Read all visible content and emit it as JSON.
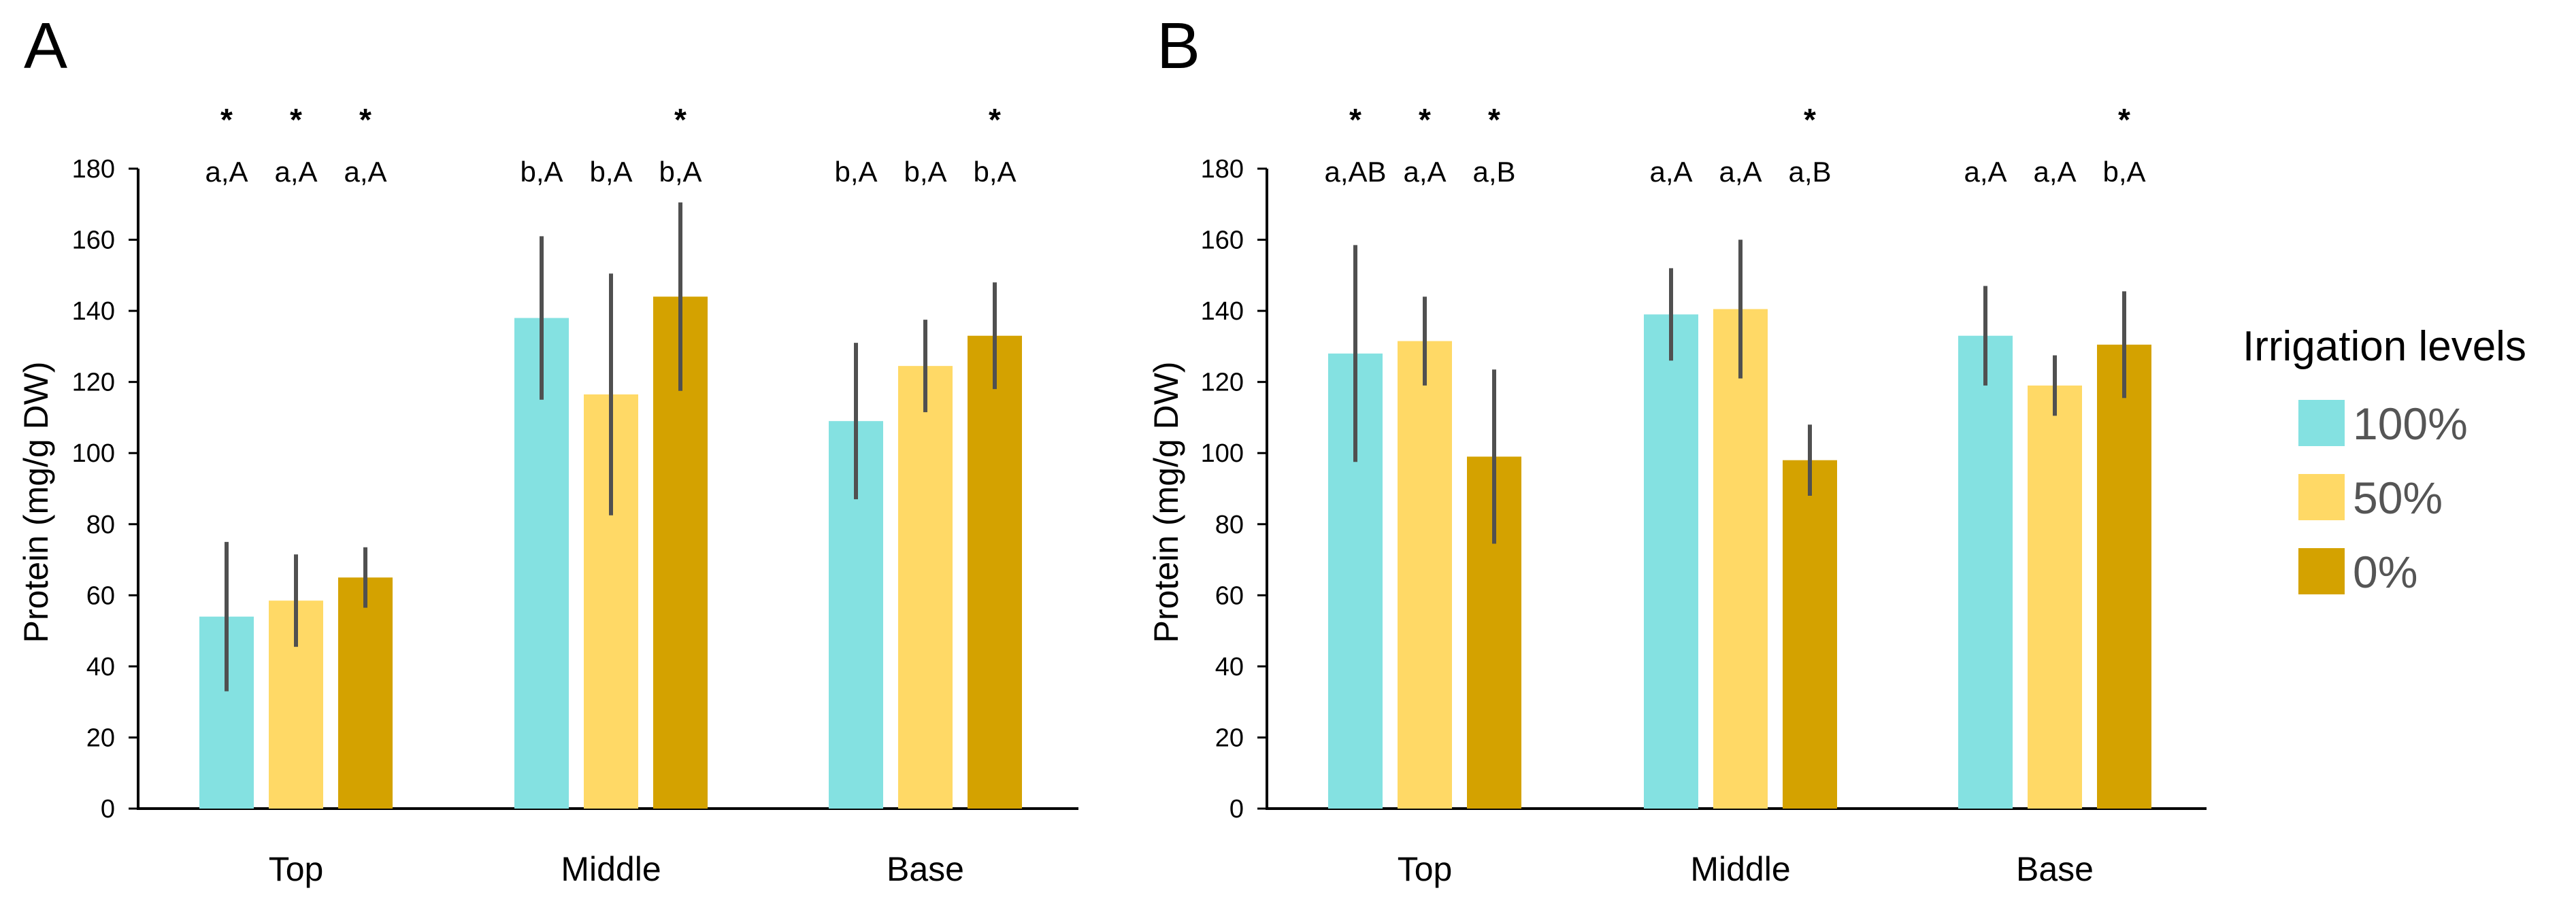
{
  "colors": {
    "s100": "#84E1E1",
    "s50": "#FFD966",
    "s0": "#D4A200",
    "error": "#505050"
  },
  "legend": {
    "title": "Irrigation levels",
    "items": [
      {
        "label": "100%",
        "color": "#84E1E1"
      },
      {
        "label": "50%",
        "color": "#FFD966"
      },
      {
        "label": "0%",
        "color": "#D4A200"
      }
    ]
  },
  "chart_data": [
    {
      "panel": "A",
      "type": "bar",
      "ylabel": "Protein (mg/g DW)",
      "ylim": [
        0,
        180
      ],
      "yticks": [
        "0",
        "20",
        "40",
        "60",
        "80",
        "100",
        "120",
        "140",
        "160",
        "180"
      ],
      "categories": [
        "Top",
        "Middle",
        "Base"
      ],
      "series": [
        {
          "name": "100%",
          "values": [
            54,
            138,
            109
          ],
          "errors": [
            21,
            23,
            22
          ],
          "labels": [
            "a,A",
            "b,A",
            "b,A"
          ],
          "stars": [
            "*",
            "",
            ""
          ]
        },
        {
          "name": "50%",
          "values": [
            58.5,
            116.5,
            124.5
          ],
          "errors": [
            13,
            34,
            13
          ],
          "labels": [
            "a,A",
            "b,A",
            "b,A"
          ],
          "stars": [
            "*",
            "",
            ""
          ]
        },
        {
          "name": "0%",
          "values": [
            65,
            144,
            133
          ],
          "errors": [
            8.5,
            26.5,
            15
          ],
          "labels": [
            "a,A",
            "b,A",
            "b,A"
          ],
          "stars": [
            "*",
            "*",
            "*"
          ]
        }
      ]
    },
    {
      "panel": "B",
      "type": "bar",
      "ylabel": "Protein (mg/g DW)",
      "ylim": [
        0,
        180
      ],
      "yticks": [
        "0",
        "20",
        "40",
        "60",
        "80",
        "100",
        "120",
        "140",
        "160",
        "180"
      ],
      "categories": [
        "Top",
        "Middle",
        "Base"
      ],
      "series": [
        {
          "name": "100%",
          "values": [
            128,
            139,
            133
          ],
          "errors": [
            30.5,
            13,
            14
          ],
          "labels": [
            "a,AB",
            "a,A",
            "a,A"
          ],
          "stars": [
            "*",
            "",
            ""
          ]
        },
        {
          "name": "50%",
          "values": [
            131.5,
            140.5,
            119
          ],
          "errors": [
            12.5,
            19.5,
            8.5
          ],
          "labels": [
            "a,A",
            "a,A",
            "a,A"
          ],
          "stars": [
            "*",
            "",
            ""
          ]
        },
        {
          "name": "0%",
          "values": [
            99,
            98,
            130.5
          ],
          "errors": [
            24.5,
            10,
            15
          ],
          "labels": [
            "a,B",
            "a,B",
            "b,A"
          ],
          "stars": [
            "*",
            "*",
            "*"
          ]
        }
      ]
    }
  ]
}
